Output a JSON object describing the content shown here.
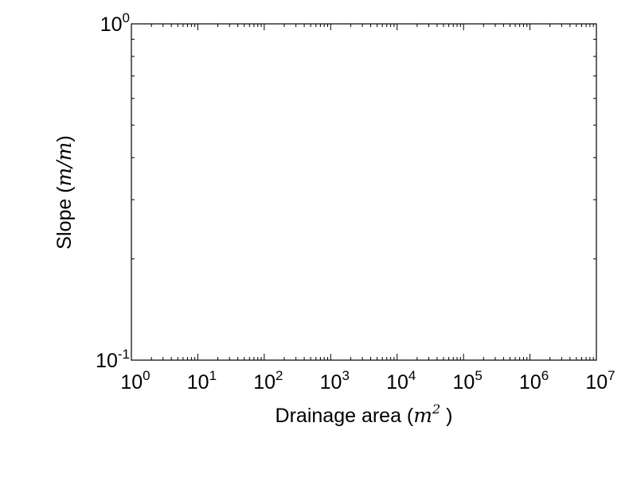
{
  "chart_data": {
    "type": "scatter",
    "title": "",
    "series": [],
    "x_scale": "log",
    "y_scale": "log",
    "xlim": [
      1,
      10000000
    ],
    "ylim": [
      0.1,
      1
    ],
    "grid": false,
    "xlabel": {
      "prefix": "Drainage area (",
      "unit_base": "m",
      "unit_exp": "2",
      "suffix": " )"
    },
    "ylabel": {
      "prefix": "Slope (",
      "unit": "m/m",
      "suffix": ")"
    },
    "x_ticks": [
      {
        "value": 1,
        "base": "10",
        "exp": "0"
      },
      {
        "value": 10,
        "base": "10",
        "exp": "1"
      },
      {
        "value": 100,
        "base": "10",
        "exp": "2"
      },
      {
        "value": 1000,
        "base": "10",
        "exp": "3"
      },
      {
        "value": 10000,
        "base": "10",
        "exp": "4"
      },
      {
        "value": 100000,
        "base": "10",
        "exp": "5"
      },
      {
        "value": 1000000,
        "base": "10",
        "exp": "6"
      },
      {
        "value": 10000000,
        "base": "10",
        "exp": "7"
      }
    ],
    "y_ticks": [
      {
        "value": 1,
        "base": "10",
        "exp": "0"
      },
      {
        "value": 0.1,
        "base": "10",
        "exp": "-1"
      }
    ]
  }
}
